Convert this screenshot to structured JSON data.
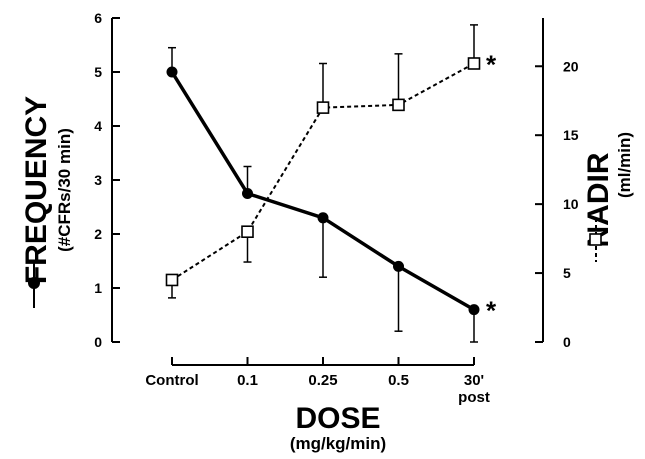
{
  "chart_data": {
    "type": "line",
    "categories": [
      "Control",
      "0.1",
      "0.25",
      "0.5",
      "30'\npost"
    ],
    "xlabel": "DOSE",
    "xlabel_sub": "(mg/kg/min)",
    "y_left": {
      "label": "FREQUENCY",
      "sublabel": "(#CFRs/30 min)",
      "range": [
        0,
        6
      ],
      "ticks": [
        0,
        1,
        2,
        3,
        4,
        5,
        6
      ]
    },
    "y_right": {
      "label": "NADIR",
      "sublabel": "(ml/min)",
      "range": [
        0,
        23.5
      ],
      "ticks": [
        0,
        5,
        10,
        15,
        20
      ]
    },
    "series": [
      {
        "name": "FREQUENCY",
        "axis": "left",
        "marker": "filled-circle",
        "line": "solid",
        "values": [
          5.0,
          2.75,
          2.3,
          1.4,
          0.6
        ],
        "error_up": [
          0.45,
          0.5,
          0,
          0,
          0
        ],
        "error_down": [
          0,
          0,
          1.1,
          1.2,
          0.6
        ],
        "annotation": {
          "index": 4,
          "text": "*"
        }
      },
      {
        "name": "NADIR",
        "axis": "right",
        "marker": "open-square",
        "line": "dashed",
        "values": [
          4.5,
          8.0,
          17.0,
          17.2,
          20.2
        ],
        "error_up": [
          0,
          0,
          3.2,
          3.7,
          2.8
        ],
        "error_down": [
          1.3,
          2.2,
          0,
          0,
          0
        ],
        "annotation": {
          "index": 4,
          "text": "*"
        }
      }
    ]
  }
}
